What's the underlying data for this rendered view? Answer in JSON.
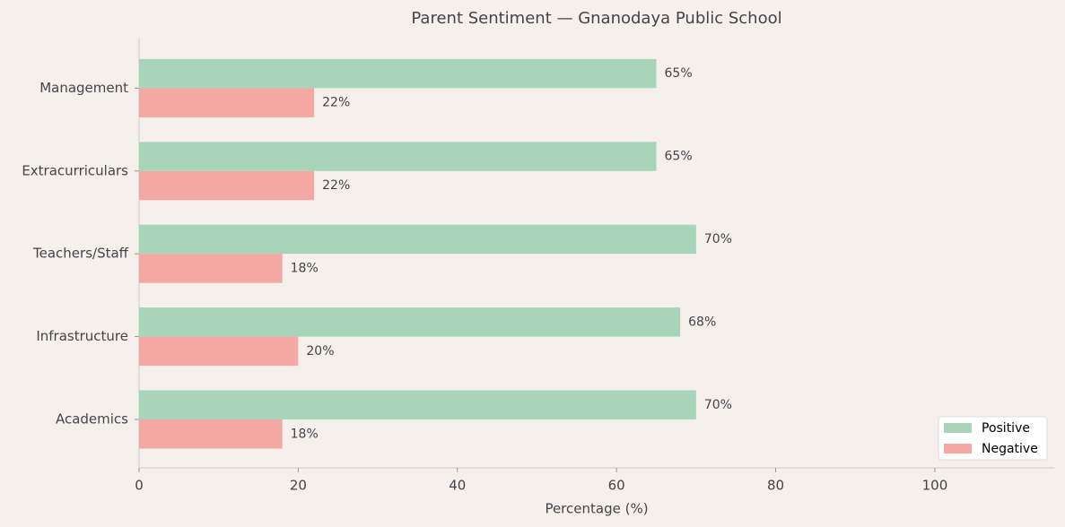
{
  "chart_data": {
    "type": "barh",
    "title": "Parent Sentiment — Gnanodaya Public School",
    "x_label": "Percentage (%)",
    "categories": [
      "Academics",
      "Infrastructure",
      "Teachers/Staff",
      "Extracurriculars",
      "Management"
    ],
    "series": [
      {
        "name": "Positive",
        "color": "#a8d5ba",
        "values": [
          70,
          68,
          70,
          65,
          65
        ],
        "value_labels": [
          "70%",
          "68%",
          "70%",
          "65%",
          "65%"
        ]
      },
      {
        "name": "Negative",
        "color": "#f4a7a3",
        "values": [
          18,
          20,
          18,
          22,
          22
        ],
        "value_labels": [
          "18%",
          "20%",
          "18%",
          "22%",
          "22%"
        ]
      }
    ],
    "xlim": [
      0,
      115
    ],
    "xticks": [
      0,
      20,
      40,
      60,
      80,
      100
    ],
    "legend": "lower right"
  }
}
